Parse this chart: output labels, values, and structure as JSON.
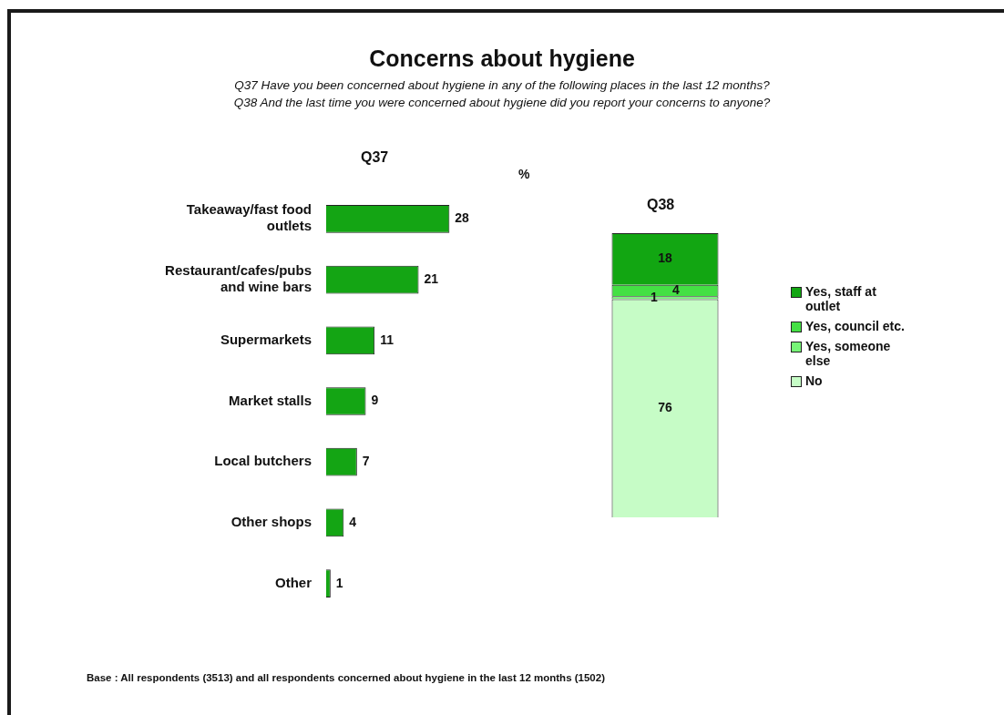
{
  "chart_data": [
    {
      "type": "other",
      "title": "Concerns about hygiene",
      "subtitle": "Q37 Have you been concerned about hygiene in any of the following places in the last 12 months?\nQ38 And the last time you were concerned about hygiene did you report your concerns to anyone?",
      "annotations": [
        "%",
        "Base : All respondents (3513) and all respondents concerned about hygiene in the last 12 months (1502)"
      ]
    },
    {
      "type": "bar",
      "orientation": "horizontal",
      "title": "Q37",
      "categories": [
        "Takeaway/fast food outlets",
        "Restaurant/cafes/pubs and wine bars",
        "Supermarkets",
        "Market stalls",
        "Local butchers",
        "Other shops",
        "Other"
      ],
      "values": [
        28,
        21,
        11,
        9,
        7,
        4,
        1
      ],
      "color": "#14a514",
      "data_labels": true,
      "legend": false
    },
    {
      "type": "bar",
      "stacked": true,
      "title": "Q38",
      "categories": [
        null
      ],
      "series": [
        {
          "name": "No",
          "color": "#c6fcc6",
          "values": [
            76
          ]
        },
        {
          "name": "Yes, someone else",
          "color": "#77f577",
          "values": [
            1
          ]
        },
        {
          "name": "Yes, council etc.",
          "color": "#44e044",
          "values": [
            4
          ]
        },
        {
          "name": "Yes, staff at outlet",
          "color": "#12a612",
          "values": [
            18
          ]
        }
      ],
      "ylim": [
        0,
        99
      ],
      "data_labels": true,
      "legend": "right"
    }
  ]
}
